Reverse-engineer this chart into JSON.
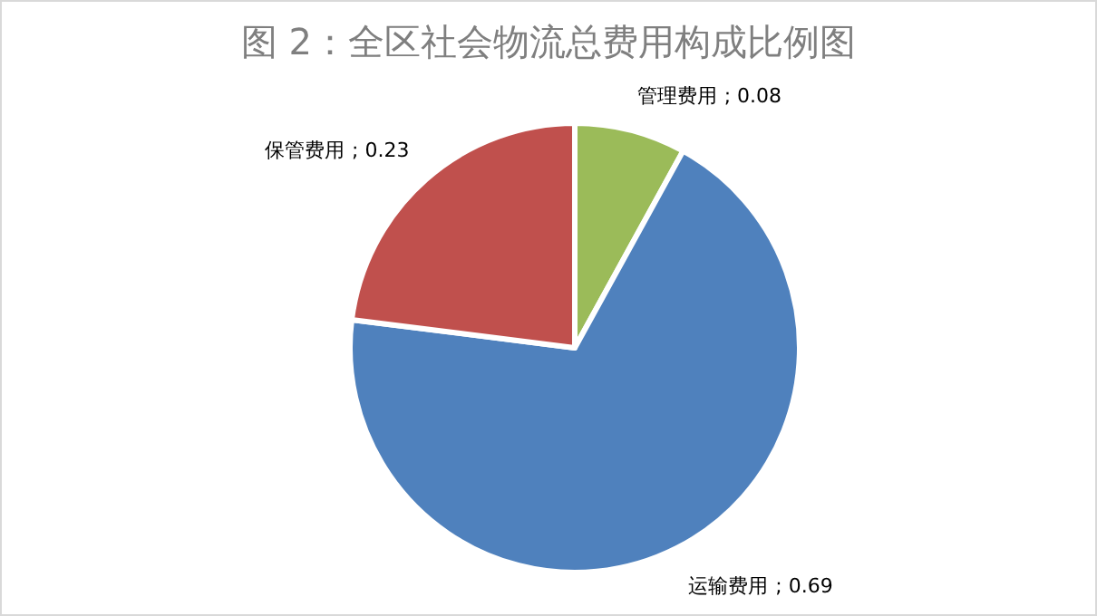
{
  "chart_data": {
    "type": "pie",
    "title": "图 2：全区社会物流总费用构成比例图",
    "categories": [
      "管理费用",
      "运输费用",
      "保管费用"
    ],
    "values": [
      0.08,
      0.69,
      0.23
    ],
    "colors": [
      "#9bbb59",
      "#4f81bd",
      "#c0504d"
    ],
    "value_labels": [
      "; 0.08",
      "; 0.69",
      "; 0.23"
    ]
  }
}
